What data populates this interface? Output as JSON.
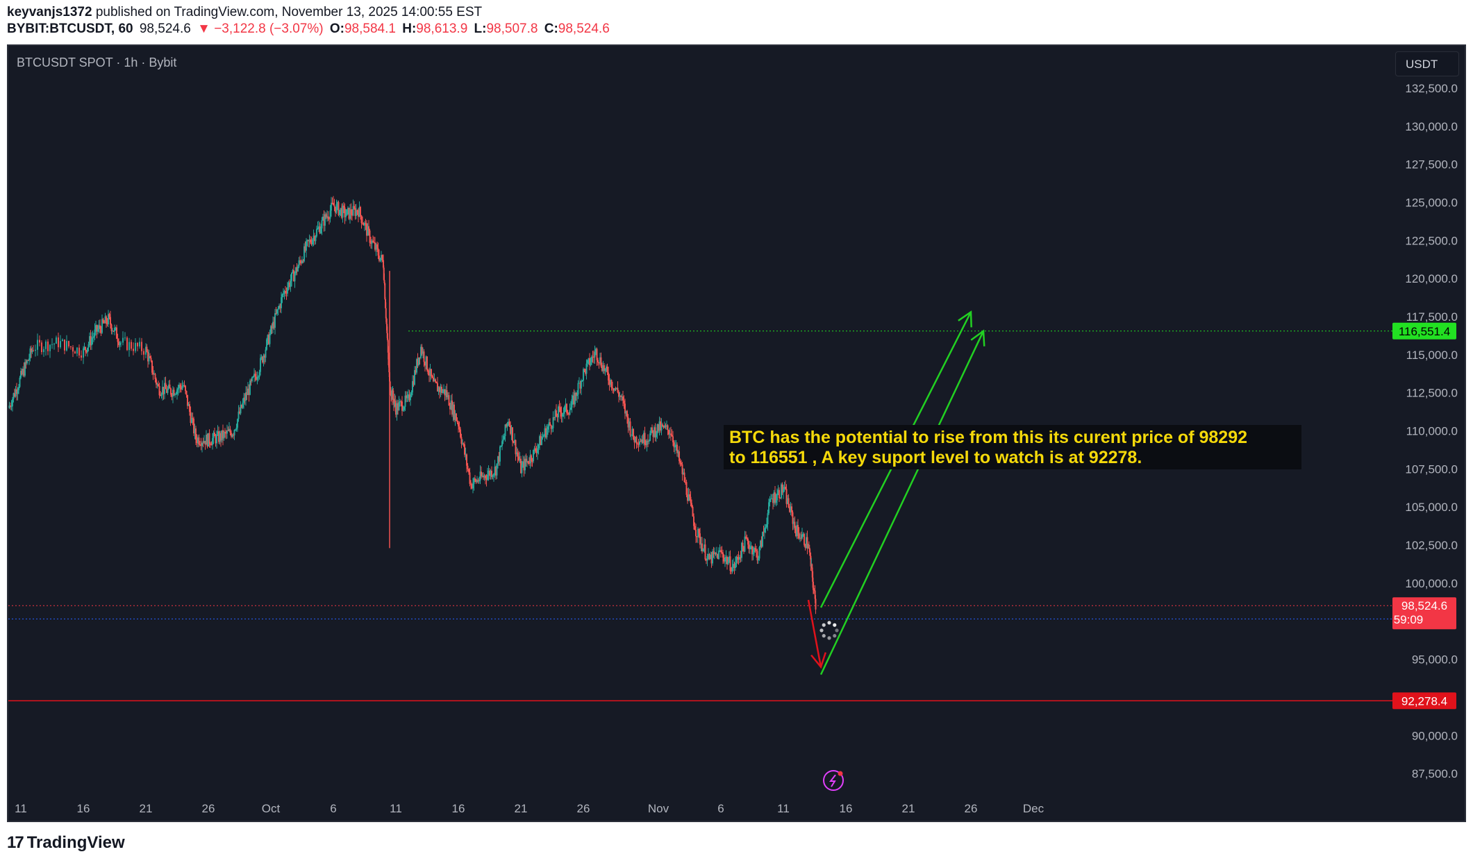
{
  "header": {
    "line1_user": "keyvanjs1372",
    "line1_rest": " published on TradingView.com, November 13, 2025 14:00:55 EST",
    "symbol": "BYBIT:BTCUSDT, 60",
    "last": "98,524.6",
    "change": "▼ −3,122.8 (−3.07%)",
    "o_label": "O:",
    "o": "98,584.1",
    "h_label": "H:",
    "h": "98,613.9",
    "l_label": "L:",
    "l": "98,507.8",
    "c_label": "C:",
    "c": "98,524.6"
  },
  "chart": {
    "symbol_label": "BTCUSDT SPOT · 1h · Bybit",
    "currency": "USDT",
    "annotation_text": "BTC has the potential to rise from this its curent price of 98292\nto 116551 , A key suport level to watch is at 92278.",
    "price_tags": {
      "target": "116,551.4",
      "current": "98,524.6",
      "countdown": "59:09",
      "support": "92,278.4"
    }
  },
  "footer": {
    "brand": "TradingView",
    "brand_mark": "17"
  },
  "colors": {
    "background": "#161a25",
    "up": "#26a69a",
    "down": "#ef5350",
    "arrow_up": "#22d022",
    "arrow_down": "#e0121b",
    "target_tag": "#22e022",
    "current_tag": "#f23645",
    "annotation_text": "#f5d90a"
  },
  "chart_data": {
    "type": "candlestick",
    "title": "BTCUSDT SPOT · 1h · Bybit",
    "ylim": [
      86000,
      134000
    ],
    "y_ticks": [
      {
        "v": 132500,
        "label": "132,500.0"
      },
      {
        "v": 130000,
        "label": "130,000.0"
      },
      {
        "v": 127500,
        "label": "127,500.0"
      },
      {
        "v": 125000,
        "label": "125,000.0"
      },
      {
        "v": 122500,
        "label": "122,500.0"
      },
      {
        "v": 120000,
        "label": "120,000.0"
      },
      {
        "v": 117500,
        "label": "117,500.0"
      },
      {
        "v": 115000,
        "label": "115,000.0"
      },
      {
        "v": 112500,
        "label": "112,500.0"
      },
      {
        "v": 110000,
        "label": "110,000.0"
      },
      {
        "v": 107500,
        "label": "107,500.0"
      },
      {
        "v": 105000,
        "label": "105,000.0"
      },
      {
        "v": 102500,
        "label": "102,500.0"
      },
      {
        "v": 100000,
        "label": "100,000.0"
      },
      {
        "v": 95000,
        "label": "95,000.0"
      },
      {
        "v": 90000,
        "label": "90,000.0"
      },
      {
        "v": 87500,
        "label": "87,500.0"
      }
    ],
    "x_ticks": [
      {
        "d": "2025-09-11",
        "label": "11"
      },
      {
        "d": "2025-09-16",
        "label": "16"
      },
      {
        "d": "2025-09-21",
        "label": "21"
      },
      {
        "d": "2025-09-26",
        "label": "26"
      },
      {
        "d": "2025-10-01",
        "label": "Oct"
      },
      {
        "d": "2025-10-06",
        "label": "6"
      },
      {
        "d": "2025-10-11",
        "label": "11"
      },
      {
        "d": "2025-10-16",
        "label": "16"
      },
      {
        "d": "2025-10-21",
        "label": "21"
      },
      {
        "d": "2025-10-26",
        "label": "26"
      },
      {
        "d": "2025-11-01",
        "label": "Nov"
      },
      {
        "d": "2025-11-06",
        "label": "6"
      },
      {
        "d": "2025-11-11",
        "label": "11"
      },
      {
        "d": "2025-11-16",
        "label": "16"
      },
      {
        "d": "2025-11-21",
        "label": "21"
      },
      {
        "d": "2025-11-26",
        "label": "26"
      },
      {
        "d": "2025-12-01",
        "label": "Dec"
      }
    ],
    "series": [
      {
        "name": "BTCUSDT",
        "close_path": [
          [
            "2025-09-10",
            111500
          ],
          [
            "2025-09-11",
            113500
          ],
          [
            "2025-09-12",
            115500
          ],
          [
            "2025-09-14",
            115800
          ],
          [
            "2025-09-16",
            115200
          ],
          [
            "2025-09-17",
            116500
          ],
          [
            "2025-09-18",
            117300
          ],
          [
            "2025-09-19",
            115800
          ],
          [
            "2025-09-21",
            115300
          ],
          [
            "2025-09-22",
            112800
          ],
          [
            "2025-09-23",
            112600
          ],
          [
            "2025-09-24",
            113000
          ],
          [
            "2025-09-25",
            109500
          ],
          [
            "2025-09-26",
            109400
          ],
          [
            "2025-09-27",
            109600
          ],
          [
            "2025-09-28",
            110000
          ],
          [
            "2025-09-29",
            112300
          ],
          [
            "2025-09-30",
            114000
          ],
          [
            "2025-10-01",
            116500
          ],
          [
            "2025-10-02",
            119000
          ],
          [
            "2025-10-03",
            120500
          ],
          [
            "2025-10-04",
            122300
          ],
          [
            "2025-10-05",
            123500
          ],
          [
            "2025-10-06",
            124800
          ],
          [
            "2025-10-07",
            124200
          ],
          [
            "2025-10-08",
            124500
          ],
          [
            "2025-10-09",
            122500
          ],
          [
            "2025-10-10",
            121000
          ],
          [
            "2025-10-10T12",
            113000
          ],
          [
            "2025-10-11",
            111500
          ],
          [
            "2025-10-12",
            112000
          ],
          [
            "2025-10-13",
            115500
          ],
          [
            "2025-10-14",
            113000
          ],
          [
            "2025-10-15",
            112500
          ],
          [
            "2025-10-16",
            110500
          ],
          [
            "2025-10-17",
            106500
          ],
          [
            "2025-10-18",
            107000
          ],
          [
            "2025-10-19",
            107500
          ],
          [
            "2025-10-20",
            110800
          ],
          [
            "2025-10-21",
            107500
          ],
          [
            "2025-10-22",
            108500
          ],
          [
            "2025-10-23",
            110000
          ],
          [
            "2025-10-24",
            111200
          ],
          [
            "2025-10-25",
            111500
          ],
          [
            "2025-10-26",
            113800
          ],
          [
            "2025-10-27",
            115200
          ],
          [
            "2025-10-28",
            113500
          ],
          [
            "2025-10-29",
            112200
          ],
          [
            "2025-10-30",
            109500
          ],
          [
            "2025-10-31",
            109500
          ],
          [
            "2025-11-01",
            110200
          ],
          [
            "2025-11-02",
            110000
          ],
          [
            "2025-11-03",
            107000
          ],
          [
            "2025-11-04",
            103500
          ],
          [
            "2025-11-05",
            101500
          ],
          [
            "2025-11-06",
            102000
          ],
          [
            "2025-11-07",
            101000
          ],
          [
            "2025-11-08",
            102800
          ],
          [
            "2025-11-09",
            101800
          ],
          [
            "2025-11-10",
            105500
          ],
          [
            "2025-11-11",
            106200
          ],
          [
            "2025-11-12",
            103500
          ],
          [
            "2025-11-13",
            102500
          ],
          [
            "2025-11-13T14",
            98524
          ]
        ]
      }
    ],
    "levels": [
      {
        "name": "target",
        "value": 116551.4,
        "color": "#22e022",
        "style": "dotted",
        "start": "2025-10-12"
      },
      {
        "name": "current",
        "value": 98524.6,
        "color": "#f23645",
        "style": "dotted"
      },
      {
        "name": "lower-dotted",
        "value": 97650,
        "color": "#2962ff",
        "style": "dotted"
      },
      {
        "name": "support",
        "value": 92278.4,
        "color": "#e0121b",
        "style": "solid"
      }
    ],
    "projection": {
      "down_arrow": [
        [
          "2025-11-13",
          98900
        ],
        [
          "2025-11-14",
          94500
        ]
      ],
      "up_arrow_1": [
        [
          "2025-11-14",
          98400
        ],
        [
          "2025-11-26",
          117800
        ]
      ],
      "up_arrow_2": [
        [
          "2025-11-14",
          94000
        ],
        [
          "2025-11-27",
          116551
        ]
      ]
    }
  }
}
